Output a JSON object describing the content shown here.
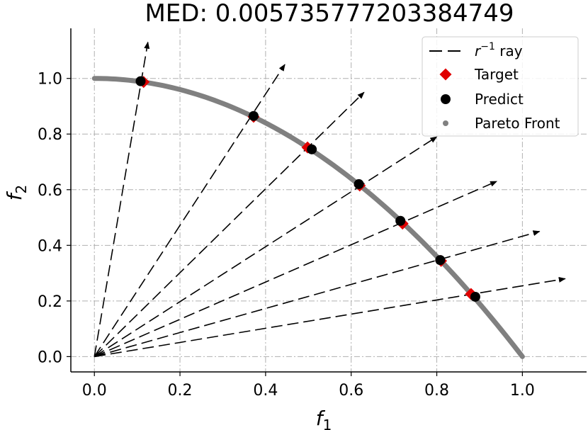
{
  "chart_data": {
    "type": "scatter",
    "title": "MED: 0.005735777203384749",
    "xlabel": "f",
    "xlabel_sub": "1",
    "ylabel": "f",
    "ylabel_sub": "2",
    "xlim": [
      -0.055,
      1.15
    ],
    "ylim": [
      -0.055,
      1.18
    ],
    "xticks": [
      0.0,
      0.2,
      0.4,
      0.6,
      0.8,
      1.0
    ],
    "yticks": [
      0.0,
      0.2,
      0.4,
      0.6,
      0.8,
      1.0
    ],
    "xtick_labels": [
      "0.0",
      "0.2",
      "0.4",
      "0.6",
      "0.8",
      "1.0"
    ],
    "ytick_labels": [
      "0.0",
      "0.2",
      "0.4",
      "0.6",
      "0.8",
      "1.0"
    ],
    "grid": true,
    "legend_position": "top-right",
    "legend": {
      "ray": {
        "prefix": "r",
        "sup": "−1",
        "suffix": " ray"
      },
      "target": "Target",
      "predict": "Predict",
      "front": "Pareto Front"
    },
    "pareto_front": {
      "x_from": 0.0,
      "x_to": 1.0,
      "shape": "f2 = 1 - f1^2"
    },
    "rays": [
      {
        "x": 0.125,
        "y": 1.13
      },
      {
        "x": 0.445,
        "y": 1.05
      },
      {
        "x": 0.63,
        "y": 0.95
      },
      {
        "x": 0.8,
        "y": 0.79
      },
      {
        "x": 0.94,
        "y": 0.63
      },
      {
        "x": 1.04,
        "y": 0.45
      },
      {
        "x": 1.1,
        "y": 0.28
      }
    ],
    "target": [
      {
        "x": 0.115,
        "y": 0.987
      },
      {
        "x": 0.372,
        "y": 0.862
      },
      {
        "x": 0.498,
        "y": 0.752
      },
      {
        "x": 0.62,
        "y": 0.615
      },
      {
        "x": 0.72,
        "y": 0.478
      },
      {
        "x": 0.81,
        "y": 0.344
      },
      {
        "x": 0.88,
        "y": 0.225
      }
    ],
    "predict": [
      {
        "x": 0.108,
        "y": 0.99
      },
      {
        "x": 0.372,
        "y": 0.865
      },
      {
        "x": 0.508,
        "y": 0.745
      },
      {
        "x": 0.618,
        "y": 0.62
      },
      {
        "x": 0.715,
        "y": 0.488
      },
      {
        "x": 0.808,
        "y": 0.347
      },
      {
        "x": 0.89,
        "y": 0.215
      }
    ],
    "colors": {
      "front": "#808080",
      "target": "#e00000",
      "predict": "#000000",
      "ray": "#000000",
      "grid": "#b0b0b0"
    }
  }
}
